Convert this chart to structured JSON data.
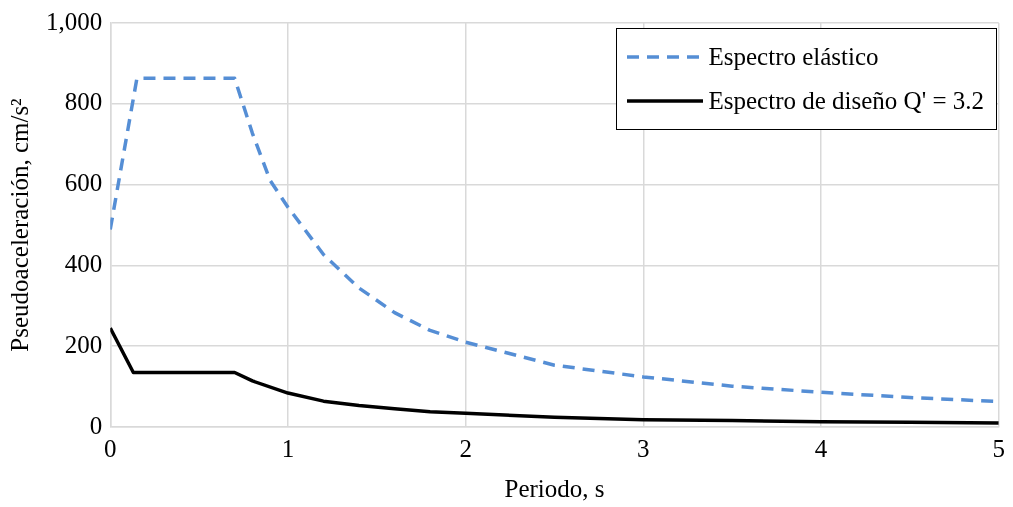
{
  "chart_data": {
    "type": "line",
    "xlabel": "Periodo, s",
    "ylabel": "Pseudoaceleración, cm/s²",
    "xlim": [
      0,
      5
    ],
    "xticks": [
      0,
      1,
      2,
      3,
      4,
      5
    ],
    "ylim": [
      0,
      1000
    ],
    "yticks": [
      0,
      200,
      400,
      600,
      800,
      {
        "value": 1000,
        "label": "1,000"
      }
    ],
    "grid": true,
    "legend": "top right",
    "marker": "none",
    "series": [
      {
        "name": "Espectro elástico",
        "color": "#558ed5",
        "line_style": "dashed",
        "x": [
          0,
          0.15,
          0.7,
          0.8,
          0.9,
          1,
          1.2,
          1.4,
          1.6,
          1.8,
          2,
          2.5,
          3,
          3.5,
          4,
          4.5,
          5
        ],
        "values": [
          489,
          863,
          863,
          727,
          610,
          544,
          427,
          344,
          283,
          239,
          210,
          153,
          124,
          101,
          86,
          73,
          63
        ]
      },
      {
        "name": "Espectro de diseño Q' = 3.2",
        "color": "#000000",
        "line_style": "solid",
        "x": [
          0,
          0.13,
          0.7,
          0.8,
          1,
          1.2,
          1.4,
          1.6,
          1.8,
          2,
          2.5,
          3,
          3.5,
          4,
          4.5,
          5
        ],
        "values": [
          245,
          135,
          135,
          114,
          84,
          64,
          53,
          45,
          38,
          34,
          24,
          18,
          16,
          13,
          12,
          10
        ]
      }
    ]
  }
}
